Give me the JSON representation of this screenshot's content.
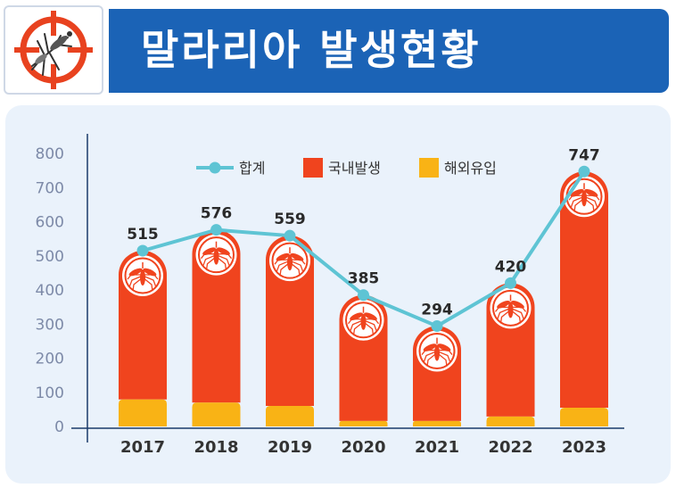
{
  "title": "말라리아 발생현황",
  "logo": {
    "icon": "mosquito-target-icon",
    "color": "#e8421f"
  },
  "colors": {
    "domestic": "#f0441e",
    "overseas": "#f9b315",
    "total": "#5ec4d4",
    "title_bg": "#1b63b6",
    "panel_bg": "#eaf2fb",
    "axis_text": "#7d8aa8",
    "year_text": "#333333"
  },
  "chart_data": {
    "type": "bar",
    "title": "말라리아 발생현황",
    "xlabel": "",
    "ylabel": "",
    "ylim": [
      0,
      800
    ],
    "yticks": [
      0,
      100,
      200,
      300,
      400,
      500,
      600,
      700,
      800
    ],
    "categories": [
      "2017",
      "2018",
      "2019",
      "2020",
      "2021",
      "2022",
      "2023"
    ],
    "stacked": true,
    "series": [
      {
        "name": "해외유입",
        "type": "bar",
        "values": [
          79,
          70,
          60,
          16,
          16,
          29,
          55
        ]
      },
      {
        "name": "국내발생",
        "type": "bar",
        "values": [
          436,
          506,
          499,
          369,
          278,
          391,
          692
        ]
      },
      {
        "name": "합계",
        "type": "line",
        "values": [
          515,
          576,
          559,
          385,
          294,
          420,
          747
        ]
      }
    ],
    "data_labels": [
      "515",
      "576",
      "559",
      "385",
      "294",
      "420",
      "747"
    ],
    "legend": {
      "position": "top",
      "entries": [
        "합계",
        "국내발생",
        "해외유입"
      ]
    }
  }
}
